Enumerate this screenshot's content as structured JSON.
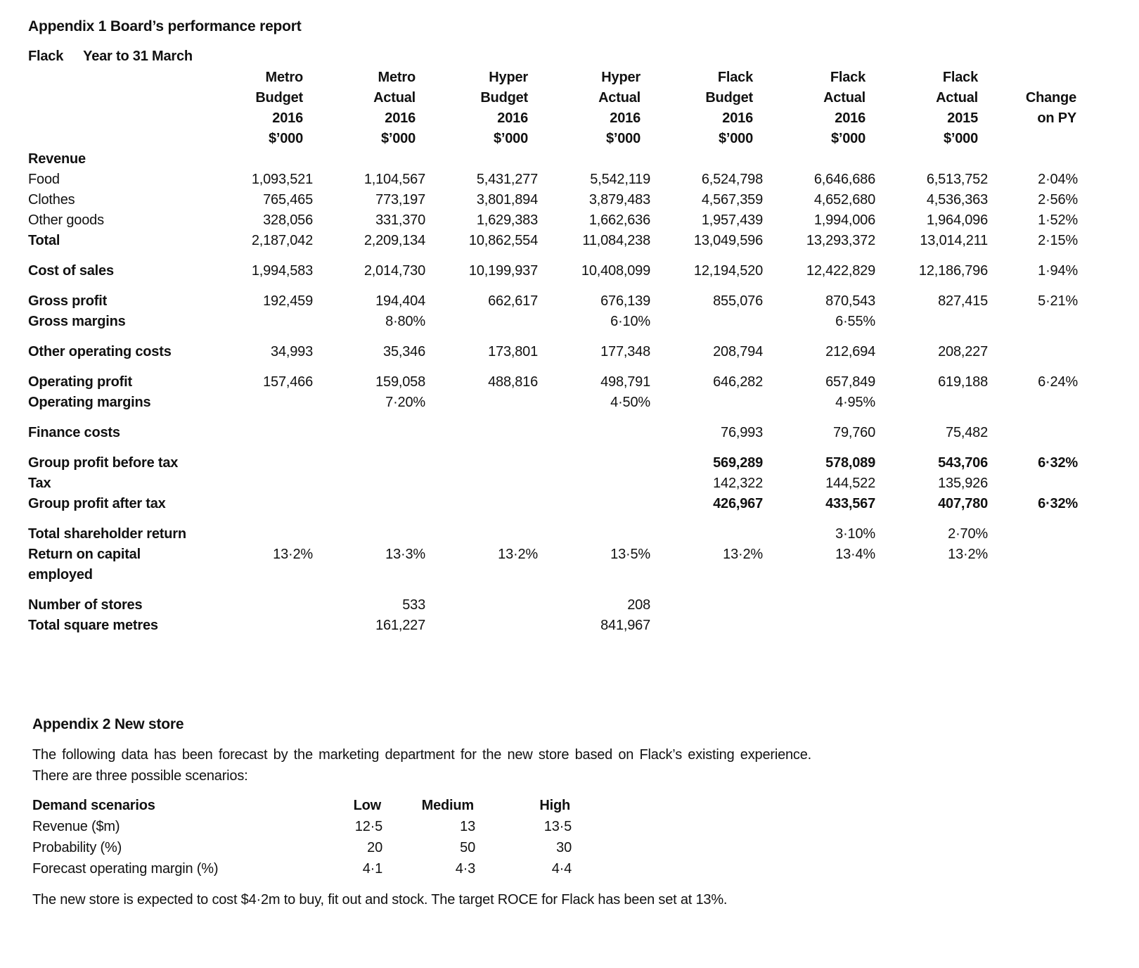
{
  "appendix1": {
    "title": "Appendix 1 Board’s performance report",
    "company": "Flack",
    "period": "Year to 31 March",
    "columns": [
      [
        "Metro",
        "Budget",
        "2016",
        "$’000"
      ],
      [
        "Metro",
        "Actual",
        "2016",
        "$’000"
      ],
      [
        "Hyper",
        "Budget",
        "2016",
        "$’000"
      ],
      [
        "Hyper",
        "Actual",
        "2016",
        "$’000"
      ],
      [
        "Flack",
        "Budget",
        "2016",
        "$’000"
      ],
      [
        "Flack",
        "Actual",
        "2016",
        "$’000"
      ],
      [
        "Flack",
        "Actual",
        "2015",
        "$’000"
      ],
      [
        "",
        "Change",
        "on PY",
        ""
      ]
    ],
    "rows": [
      {
        "label": "Revenue",
        "bold": true,
        "gap": false,
        "bold_values": false,
        "values": [
          "",
          "",
          "",
          "",
          "",
          "",
          "",
          ""
        ]
      },
      {
        "label": "Food",
        "bold": false,
        "gap": false,
        "bold_values": false,
        "values": [
          "1,093,521",
          "1,104,567",
          "5,431,277",
          "5,542,119",
          "6,524,798",
          "6,646,686",
          "6,513,752",
          "2·04%"
        ]
      },
      {
        "label": "Clothes",
        "bold": false,
        "gap": false,
        "bold_values": false,
        "values": [
          "765,465",
          "773,197",
          "3,801,894",
          "3,879,483",
          "4,567,359",
          "4,652,680",
          "4,536,363",
          "2·56%"
        ]
      },
      {
        "label": "Other goods",
        "bold": false,
        "gap": false,
        "bold_values": false,
        "values": [
          "328,056",
          "331,370",
          "1,629,383",
          "1,662,636",
          "1,957,439",
          "1,994,006",
          "1,964,096",
          "1·52%"
        ]
      },
      {
        "label": "Total",
        "bold": true,
        "gap": false,
        "bold_values": false,
        "values": [
          "2,187,042",
          "2,209,134",
          "10,862,554",
          "11,084,238",
          "13,049,596",
          "13,293,372",
          "13,014,211",
          "2·15%"
        ]
      },
      {
        "label": "Cost of sales",
        "bold": true,
        "gap": true,
        "bold_values": false,
        "values": [
          "1,994,583",
          "2,014,730",
          "10,199,937",
          "10,408,099",
          "12,194,520",
          "12,422,829",
          "12,186,796",
          "1·94%"
        ]
      },
      {
        "label": "Gross profit",
        "bold": true,
        "gap": true,
        "bold_values": false,
        "values": [
          "192,459",
          "194,404",
          "662,617",
          "676,139",
          "855,076",
          "870,543",
          "827,415",
          "5·21%"
        ]
      },
      {
        "label": "Gross margins",
        "bold": true,
        "gap": false,
        "bold_values": false,
        "values": [
          "",
          "8·80%",
          "",
          "6·10%",
          "",
          "6·55%",
          "",
          ""
        ]
      },
      {
        "label": "Other operating costs",
        "bold": true,
        "gap": true,
        "bold_values": false,
        "values": [
          "34,993",
          "35,346",
          "173,801",
          "177,348",
          "208,794",
          "212,694",
          "208,227",
          ""
        ]
      },
      {
        "label": "Operating profit",
        "bold": true,
        "gap": true,
        "bold_values": false,
        "values": [
          "157,466",
          "159,058",
          "488,816",
          "498,791",
          "646,282",
          "657,849",
          "619,188",
          "6·24%"
        ]
      },
      {
        "label": "Operating margins",
        "bold": true,
        "gap": false,
        "bold_values": false,
        "values": [
          "",
          "7·20%",
          "",
          "4·50%",
          "",
          "4·95%",
          "",
          ""
        ]
      },
      {
        "label": "Finance costs",
        "bold": true,
        "gap": true,
        "bold_values": false,
        "values": [
          "",
          "",
          "",
          "",
          "76,993",
          "79,760",
          "75,482",
          ""
        ]
      },
      {
        "label": "Group profit before tax",
        "bold": true,
        "gap": true,
        "bold_values": true,
        "values": [
          "",
          "",
          "",
          "",
          "569,289",
          "578,089",
          "543,706",
          "6·32%"
        ]
      },
      {
        "label": "Tax",
        "bold": true,
        "gap": false,
        "bold_values": false,
        "values": [
          "",
          "",
          "",
          "",
          "142,322",
          "144,522",
          "135,926",
          ""
        ]
      },
      {
        "label": "Group profit after tax",
        "bold": true,
        "gap": false,
        "bold_values": true,
        "values": [
          "",
          "",
          "",
          "",
          "426,967",
          "433,567",
          "407,780",
          "6·32%"
        ]
      },
      {
        "label": "Total shareholder return",
        "bold": true,
        "gap": true,
        "bold_values": false,
        "values": [
          "",
          "",
          "",
          "",
          "",
          "3·10%",
          "2·70%",
          ""
        ]
      },
      {
        "label": "Return on capital employed",
        "bold": true,
        "gap": false,
        "bold_values": false,
        "values": [
          "13·2%",
          "13·3%",
          "13·2%",
          "13·5%",
          "13·2%",
          "13·4%",
          "13·2%",
          ""
        ]
      },
      {
        "label": "Number of stores",
        "bold": true,
        "gap": true,
        "bold_values": false,
        "values": [
          "",
          "533",
          "",
          "208",
          "",
          "",
          "",
          ""
        ]
      },
      {
        "label": "Total square metres",
        "bold": true,
        "gap": false,
        "bold_values": false,
        "values": [
          "",
          "161,227",
          "",
          "841,967",
          "",
          "",
          "",
          ""
        ]
      }
    ]
  },
  "appendix2": {
    "title": "Appendix 2 New store",
    "intro": "The following data has been forecast by the marketing department for the new store based on Flack’s existing experience. There are three possible scenarios:",
    "table": {
      "header_label": "Demand scenarios",
      "columns": [
        "Low",
        "Medium",
        "High"
      ],
      "rows": [
        {
          "label": "Revenue ($m)",
          "values": [
            "12·5",
            "13",
            "13·5"
          ]
        },
        {
          "label": "Probability (%)",
          "values": [
            "20",
            "50",
            "30"
          ]
        },
        {
          "label": "Forecast operating margin (%)",
          "values": [
            "4·1",
            "4·3",
            "4·4"
          ]
        }
      ]
    },
    "note": "The new store is expected to cost $4·2m to buy, fit out and stock. The target ROCE for Flack has been set at 13%."
  }
}
